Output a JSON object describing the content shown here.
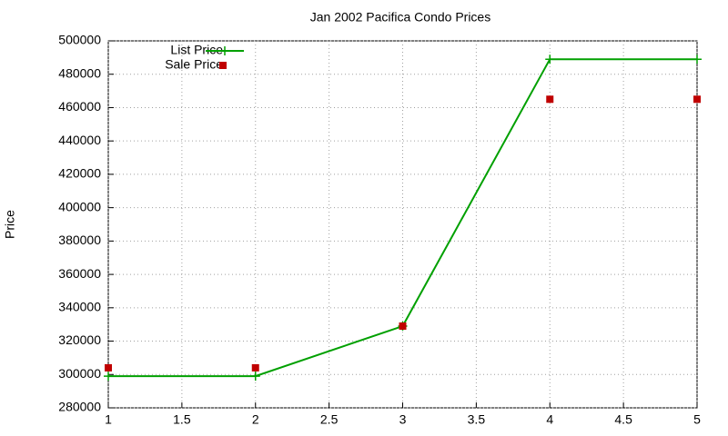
{
  "chart_data": {
    "type": "line",
    "title": "Jan 2002 Pacifica Condo Prices",
    "y_label": "Price",
    "x": [
      1,
      2,
      3,
      4,
      5
    ],
    "series": [
      {
        "name": "List Price",
        "color": "#00a000",
        "mode": "lines+points",
        "values": [
          299000,
          299000,
          329000,
          489000,
          489000
        ]
      },
      {
        "name": "Sale Price",
        "color": "#c00000",
        "mode": "points",
        "values": [
          304000,
          304000,
          329000,
          465000,
          465000
        ]
      }
    ],
    "xlim": [
      1,
      5
    ],
    "xticks": [
      1,
      1.5,
      2,
      2.5,
      3,
      3.5,
      4,
      4.5,
      5
    ],
    "ylim": [
      280000,
      500000
    ],
    "yticks": [
      280000,
      300000,
      320000,
      340000,
      360000,
      380000,
      400000,
      420000,
      440000,
      460000,
      480000,
      500000
    ],
    "grid": true,
    "legend": "top-left"
  }
}
